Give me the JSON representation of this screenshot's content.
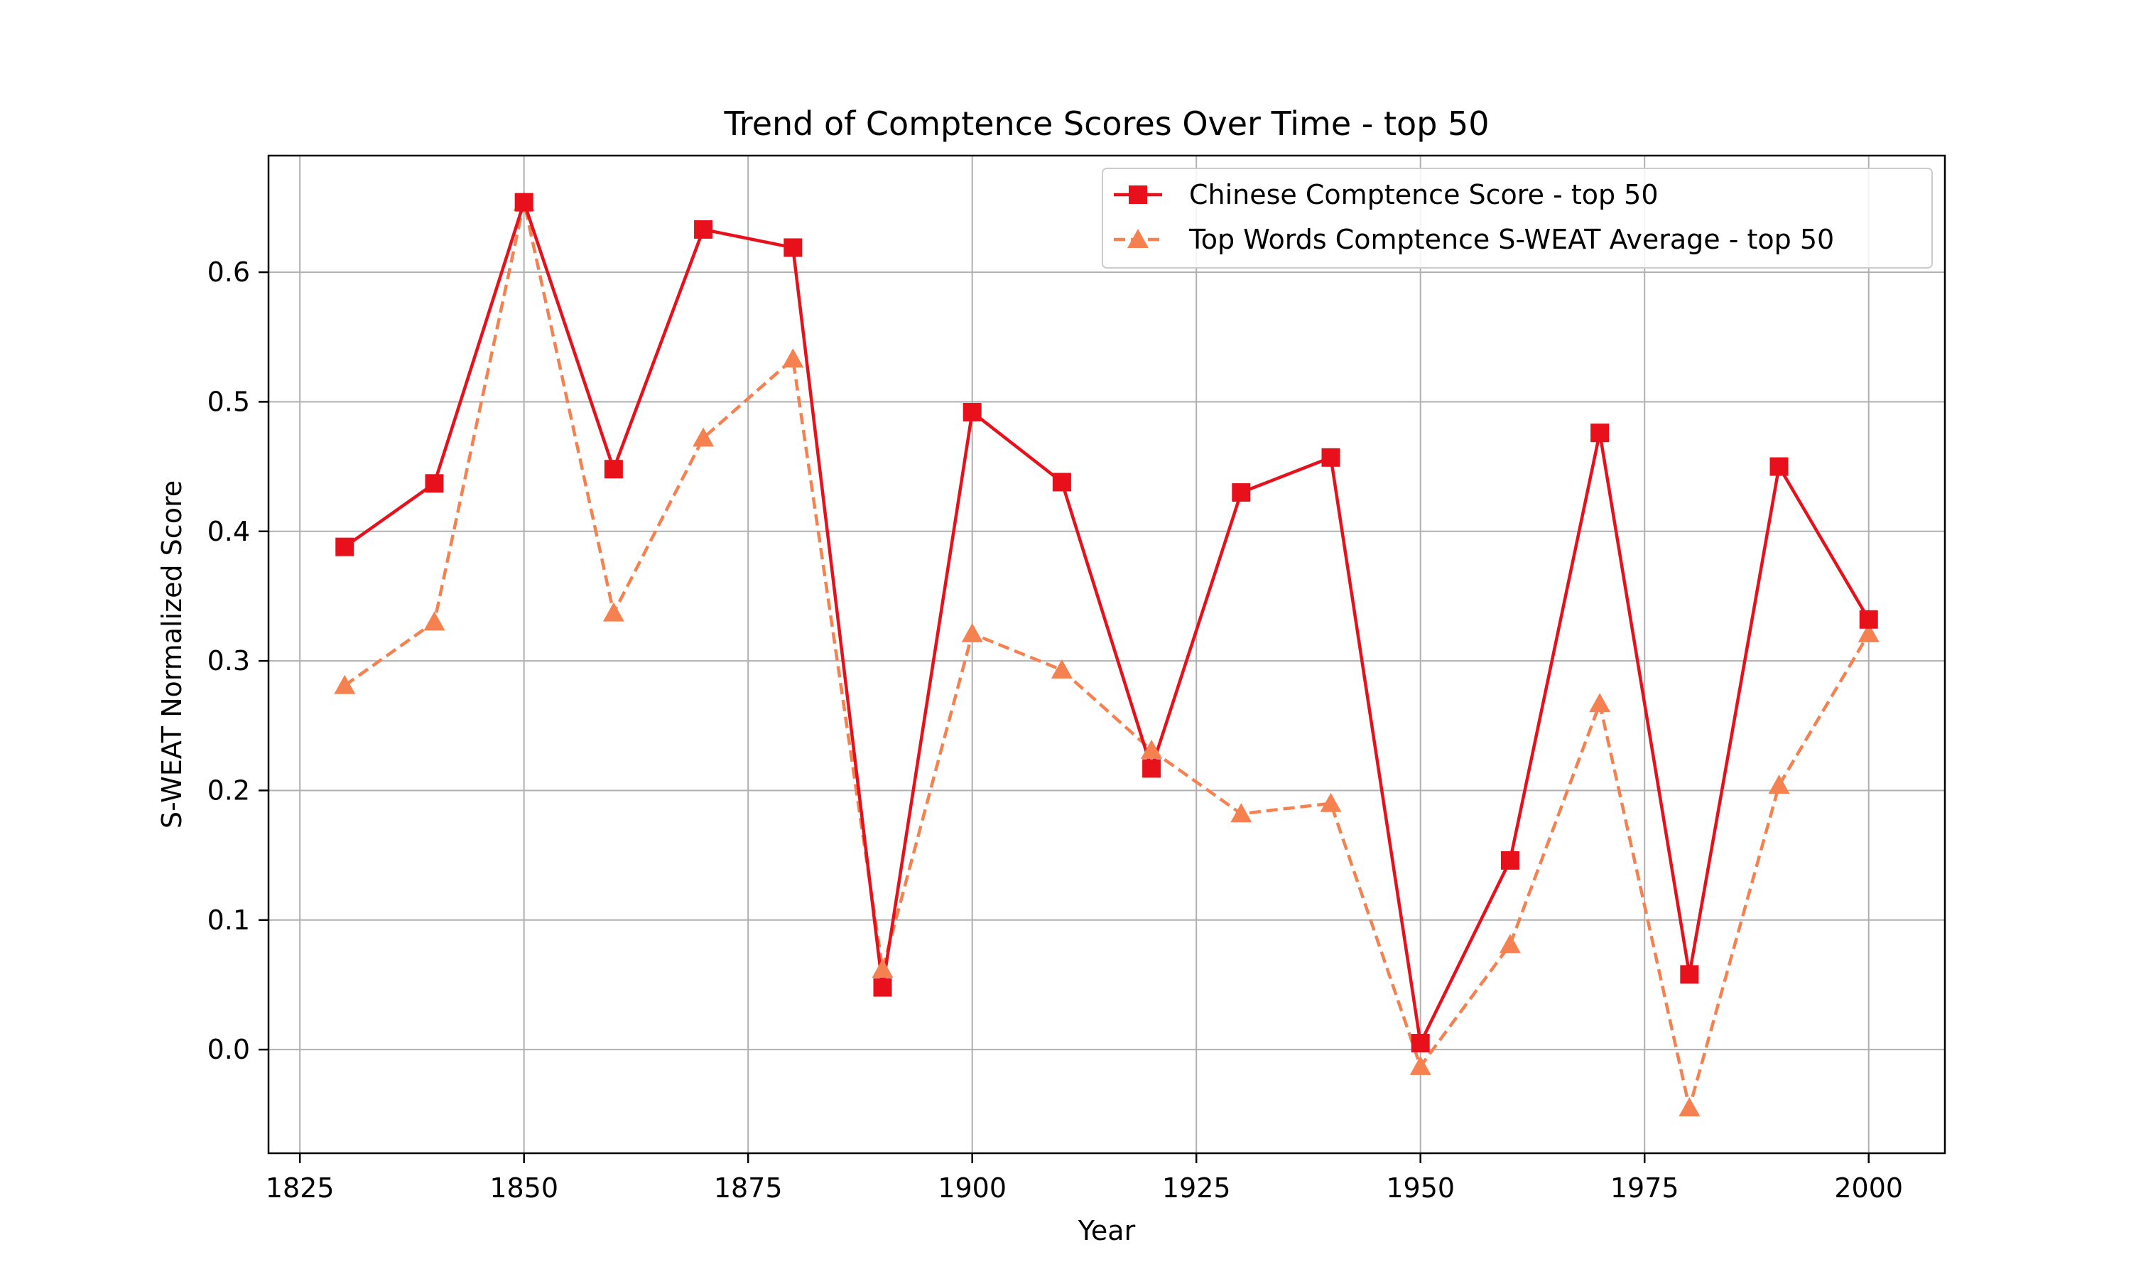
{
  "chart_data": {
    "type": "line",
    "title": "Trend of Comptence Scores Over Time - top 50",
    "xlabel": "Year",
    "ylabel": "S-WEAT Normalized Score",
    "xlim": [
      1821.5,
      2008.5
    ],
    "ylim": [
      -0.08,
      0.69
    ],
    "xticks": [
      1825,
      1850,
      1875,
      1900,
      1925,
      1950,
      1975,
      2000
    ],
    "yticks": [
      0.0,
      0.1,
      0.2,
      0.3,
      0.4,
      0.5,
      0.6
    ],
    "ytick_labels": [
      "0.0",
      "0.1",
      "0.2",
      "0.3",
      "0.4",
      "0.5",
      "0.6"
    ],
    "grid": true,
    "legend_position": "top-right",
    "x": [
      1830,
      1840,
      1850,
      1860,
      1870,
      1880,
      1890,
      1900,
      1910,
      1920,
      1930,
      1940,
      1950,
      1960,
      1970,
      1980,
      1990,
      2000
    ],
    "series": [
      {
        "name": "Chinese Comptence Score - top 50",
        "color": "#e8101b",
        "line_style": "solid",
        "marker": "square",
        "values": [
          0.388,
          0.437,
          0.654,
          0.448,
          0.633,
          0.619,
          0.048,
          0.492,
          0.438,
          0.217,
          0.43,
          0.457,
          0.005,
          0.146,
          0.476,
          0.058,
          0.45,
          0.332
        ]
      },
      {
        "name": "Top Words Comptence S-WEAT Average - top 50",
        "color": "#f4814f",
        "line_style": "dashed",
        "marker": "triangle",
        "values": [
          0.281,
          0.33,
          0.654,
          0.337,
          0.472,
          0.533,
          0.062,
          0.321,
          0.293,
          0.231,
          0.182,
          0.19,
          -0.013,
          0.081,
          0.267,
          -0.045,
          0.204,
          0.321
        ]
      }
    ]
  }
}
